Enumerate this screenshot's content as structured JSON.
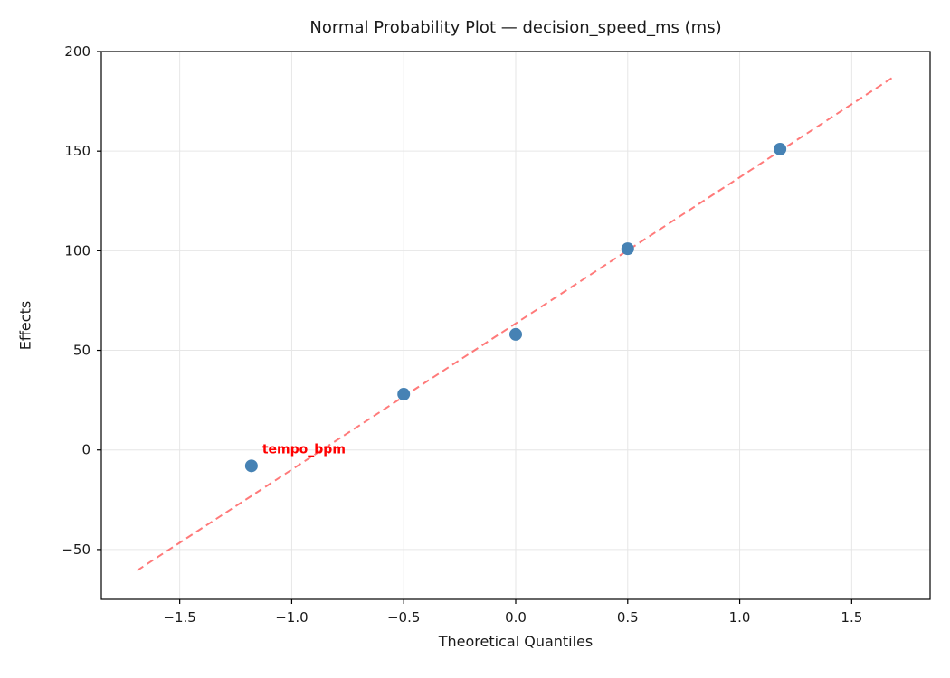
{
  "chart_data": {
    "type": "scatter",
    "title": "Normal Probability Plot — decision_speed_ms (ms)",
    "xlabel": "Theoretical Quantiles",
    "ylabel": "Effects",
    "xlim": [
      -1.85,
      1.85
    ],
    "ylim": [
      -75,
      200
    ],
    "grid": true,
    "grid_color": "#e6e6e6",
    "frame_color": "#000000",
    "tick_label_color": "#1a1a1a",
    "point_color": "#4682b4",
    "x_ticks": [
      {
        "v": -1.5,
        "label": "−1.5"
      },
      {
        "v": -1.0,
        "label": "−1.0"
      },
      {
        "v": -0.5,
        "label": "−0.5"
      },
      {
        "v": 0.0,
        "label": "0.0"
      },
      {
        "v": 0.5,
        "label": "0.5"
      },
      {
        "v": 1.0,
        "label": "1.0"
      },
      {
        "v": 1.5,
        "label": "1.5"
      }
    ],
    "y_ticks": [
      {
        "v": -50,
        "label": "−50"
      },
      {
        "v": 0,
        "label": "0"
      },
      {
        "v": 50,
        "label": "50"
      },
      {
        "v": 100,
        "label": "100"
      },
      {
        "v": 150,
        "label": "150"
      },
      {
        "v": 200,
        "label": "200"
      }
    ],
    "points": [
      {
        "x": -1.18,
        "y": -8,
        "label": "tempo_bpm"
      },
      {
        "x": -0.5,
        "y": 28
      },
      {
        "x": 0.0,
        "y": 58
      },
      {
        "x": 0.5,
        "y": 101
      },
      {
        "x": 1.18,
        "y": 151
      }
    ],
    "annotation": {
      "text": "tempo_bpm",
      "x": -1.18,
      "y": -8,
      "dx": 12,
      "dy": -14,
      "color": "#ff0000"
    },
    "reference_line": {
      "x1": -1.69,
      "y1": -60.5,
      "x2": 1.69,
      "y2": 187.5,
      "color": "#ff4d4d",
      "opacity": 0.75,
      "dashed": true
    }
  }
}
